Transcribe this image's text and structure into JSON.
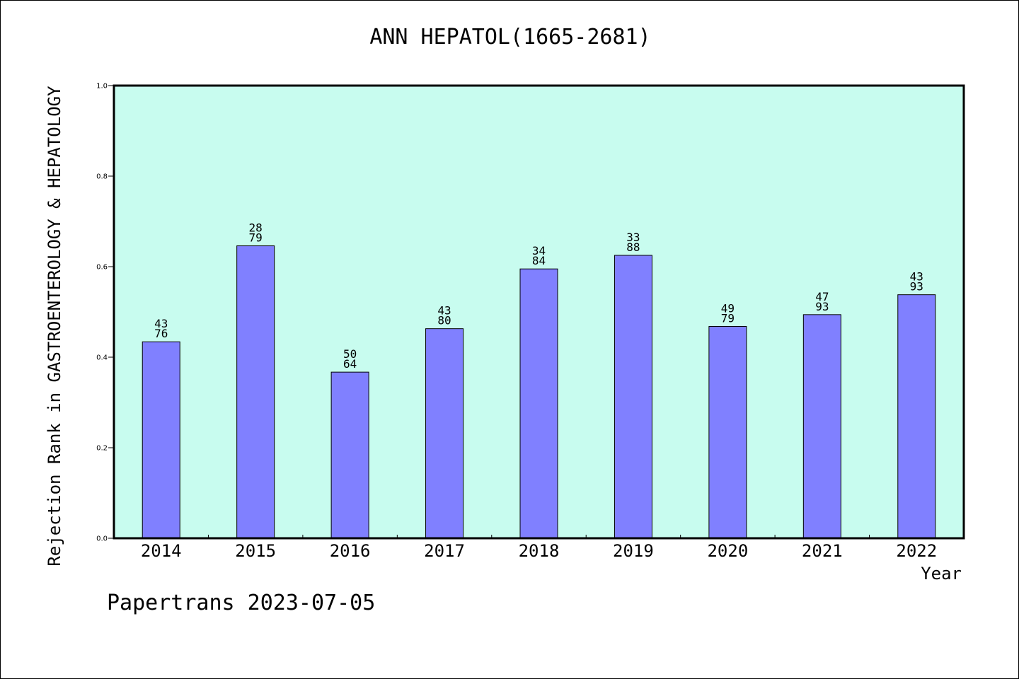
{
  "chart_data": {
    "type": "bar",
    "title": "ANN HEPATOL(1665-2681)",
    "xlabel": "Year",
    "ylabel": "Rejection Rank in GASTROENTEROLOGY & HEPATOLOGY",
    "ylim": [
      0,
      1.0
    ],
    "yticks": [
      "0.0",
      "0.2",
      "0.4",
      "0.6",
      "0.8",
      "1.0"
    ],
    "categories": [
      "2014",
      "2015",
      "2016",
      "2017",
      "2018",
      "2019",
      "2020",
      "2021",
      "2022"
    ],
    "values": [
      0.434,
      0.646,
      0.367,
      0.463,
      0.595,
      0.625,
      0.468,
      0.494,
      0.538
    ],
    "labels_top": [
      "43",
      "28",
      "50",
      "43",
      "34",
      "33",
      "49",
      "47",
      "43"
    ],
    "labels_bottom": [
      "76",
      "79",
      "64",
      "80",
      "84",
      "88",
      "79",
      "93",
      "93"
    ],
    "grid": false,
    "legend": "none",
    "colors": {
      "bar": "#8080ff",
      "plot_bg": "#c8fcef",
      "axis": "#000000"
    }
  },
  "footer": "Papertrans 2023-07-05"
}
